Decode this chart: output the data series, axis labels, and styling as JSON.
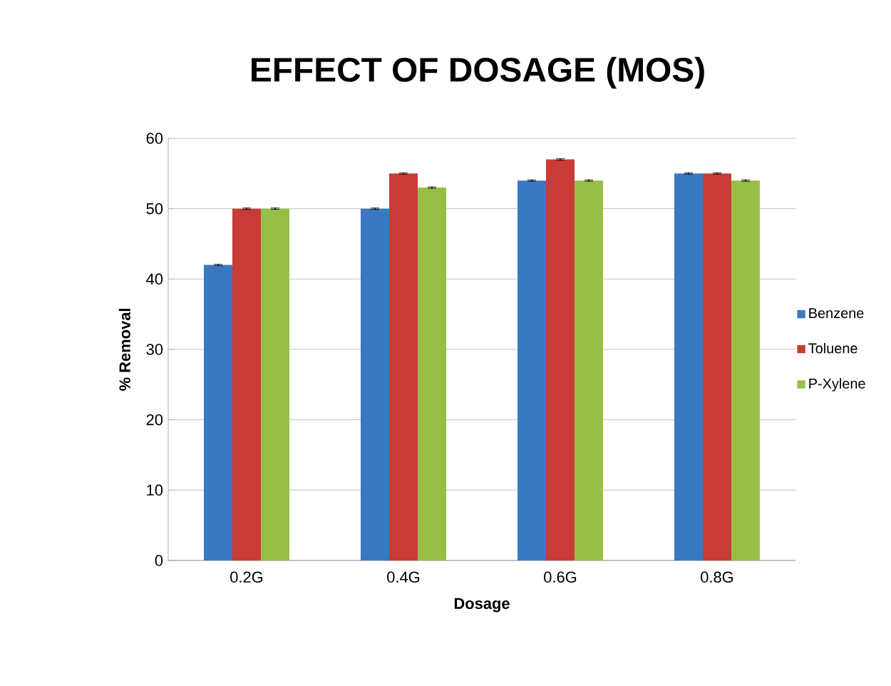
{
  "chart_data": {
    "type": "bar",
    "title": "EFFECT OF DOSAGE (MOS)",
    "xlabel": "Dosage",
    "ylabel": "% Removal",
    "categories": [
      "0.2G",
      "0.4G",
      "0.6G",
      "0.8G"
    ],
    "series": [
      {
        "name": "Benzene",
        "color": "#3a78c3",
        "values": [
          42,
          50,
          54,
          55
        ],
        "errors": [
          0.1,
          0.1,
          0.1,
          0.1
        ]
      },
      {
        "name": "Toluene",
        "color": "#c83b37",
        "values": [
          50,
          55,
          57,
          55
        ],
        "errors": [
          0.1,
          0.1,
          0.1,
          0.1
        ]
      },
      {
        "name": "P-Xylene",
        "color": "#97bf47",
        "values": [
          50,
          53,
          54,
          54
        ],
        "errors": [
          0.1,
          0.1,
          0.1,
          0.1
        ]
      }
    ],
    "ylim": [
      0,
      60
    ],
    "yticks": [
      0,
      10,
      20,
      30,
      40,
      50,
      60
    ],
    "grid": "y",
    "legend": "right"
  }
}
